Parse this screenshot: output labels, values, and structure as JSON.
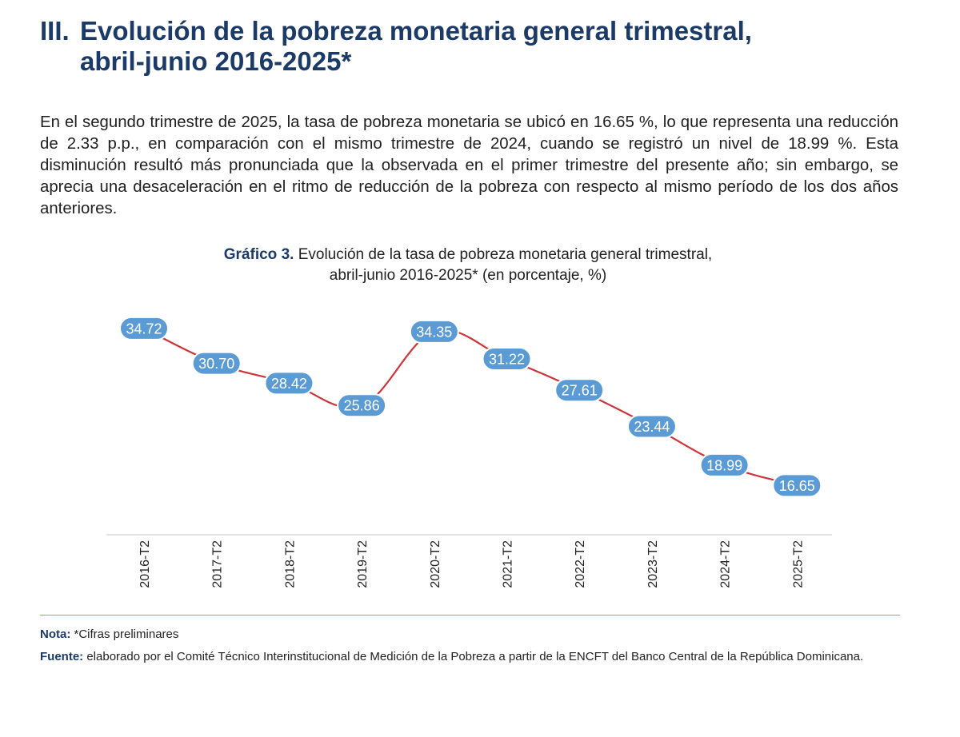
{
  "heading": {
    "number": "III.",
    "line1": "Evolución de la pobreza monetaria general trimestral,",
    "line2": "abril-junio 2016-2025*"
  },
  "intro": "En el segundo trimestre de 2025, la tasa de pobreza monetaria se ubicó en 16.65 %, lo que representa una reducción de 2.33 p.p., en comparación con el mismo trimestre de 2024, cuando se registró un nivel de 18.99 %. Esta disminución resultó más pronunciada que la observada en el primer trimestre del presente año; sin embargo, se aprecia una desaceleración en el ritmo de reducción de la pobreza con respecto al mismo período de los dos años anteriores.",
  "chart_caption": {
    "label": "Gráfico 3.",
    "line1": "Evolución de la tasa de pobreza monetaria general trimestral,",
    "line2": "abril-junio 2016-2025* (en porcentaje, %)"
  },
  "chart_data": {
    "type": "line",
    "title": "Evolución de la tasa de pobreza monetaria general trimestral, abril-junio 2016-2025* (en porcentaje, %)",
    "categories": [
      "2016-T2",
      "2017-T2",
      "2018-T2",
      "2019-T2",
      "2020-T2",
      "2021-T2",
      "2022-T2",
      "2023-T2",
      "2024-T2",
      "2025-T2"
    ],
    "values": [
      34.72,
      30.7,
      28.42,
      25.86,
      34.35,
      31.22,
      27.61,
      23.44,
      18.99,
      16.65
    ],
    "labels": [
      "34.72",
      "30.70",
      "28.42",
      "25.86",
      "34.35",
      "31.22",
      "27.61",
      "23.44",
      "18.99",
      "16.65"
    ],
    "ylim": [
      13,
      36
    ],
    "grid": false,
    "line_color": "#d0333a",
    "label_bg_color": "#5b9bd5",
    "label_text_color": "#ffffff"
  },
  "footer": {
    "note_label": "Nota:",
    "note_text": "*Cifras preliminares",
    "source_label": "Fuente:",
    "source_text": "elaborado por el Comité Técnico Interinstitucional de Medición de la Pobreza a partir de la ENCFT del Banco Central de la República Dominicana."
  }
}
